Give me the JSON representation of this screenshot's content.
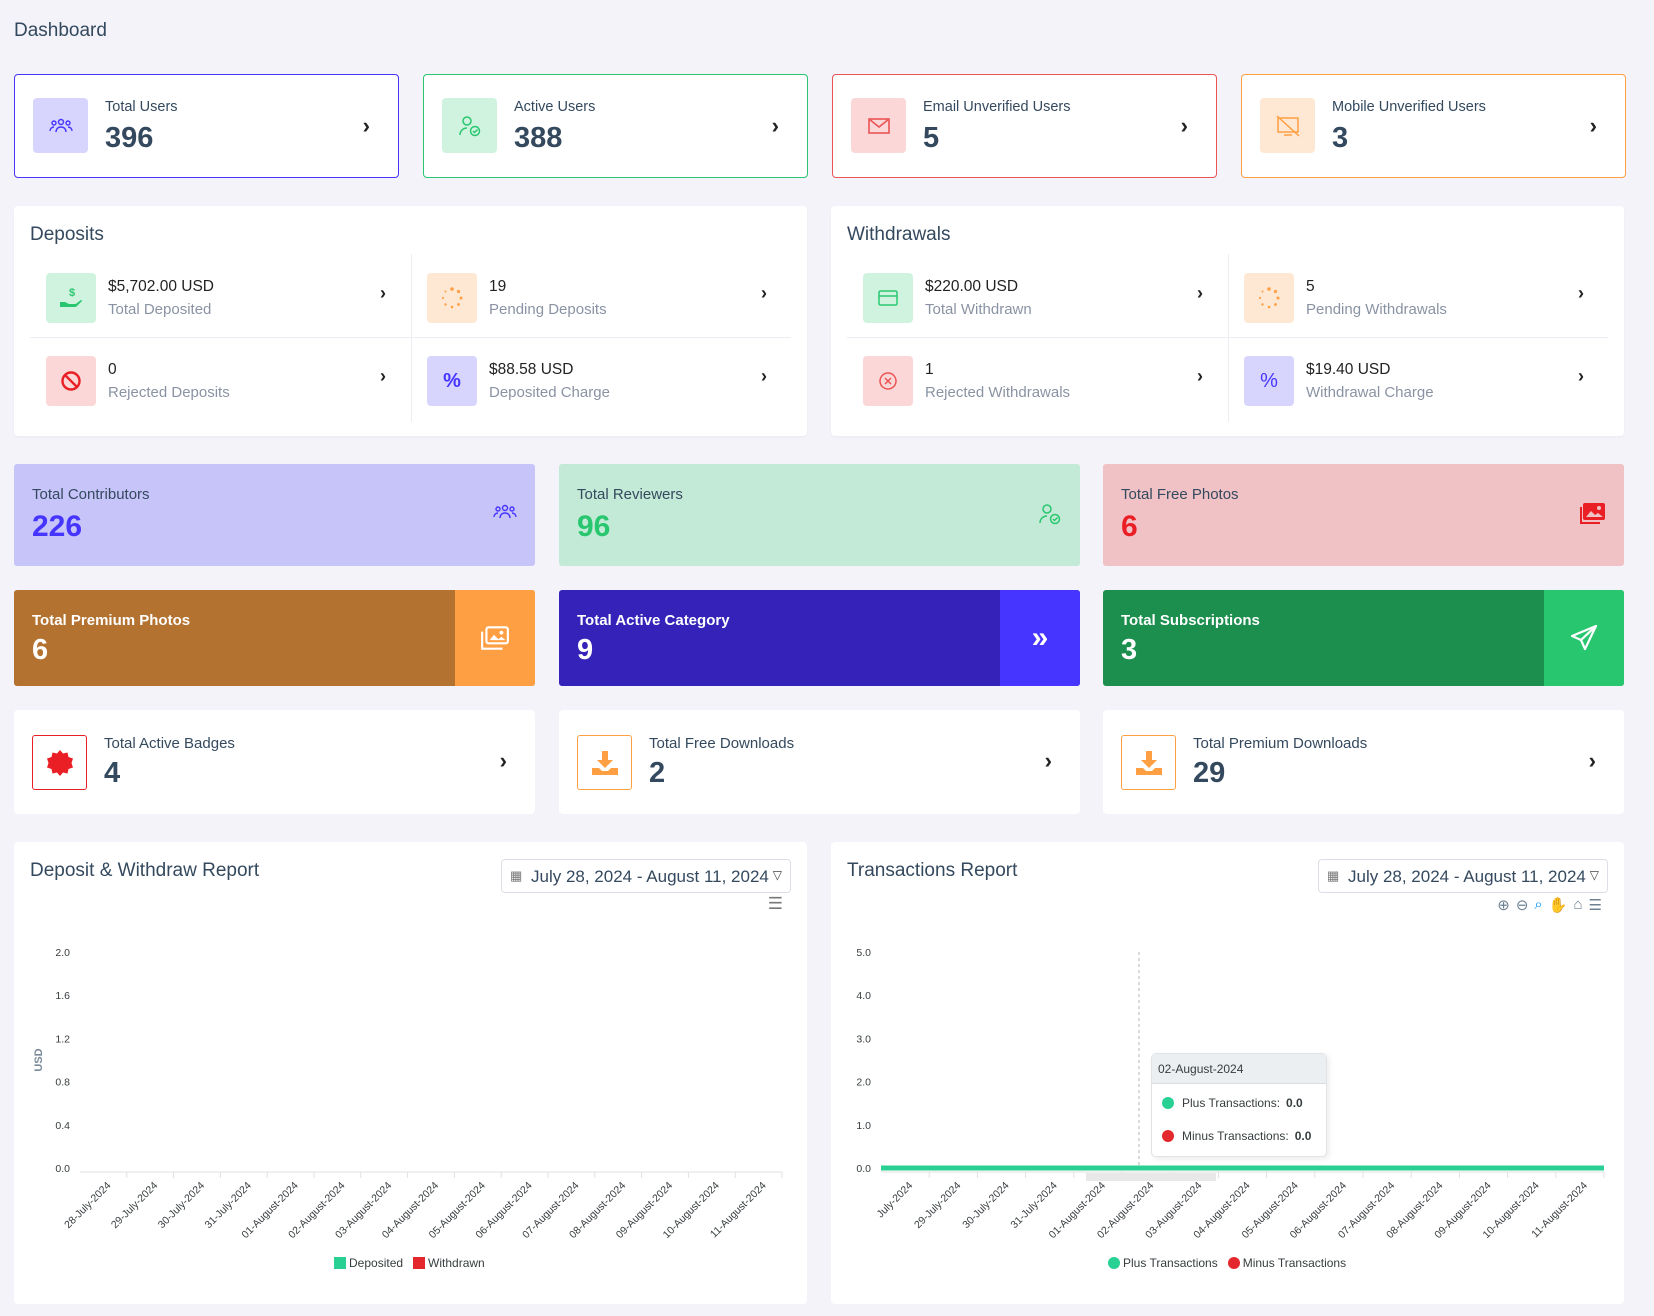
{
  "page_title": "Dashboard",
  "widgets": [
    {
      "label": "Total Users",
      "value": "396",
      "icon": "users-icon",
      "color": "#4634ff",
      "bg": "#d7d4fd"
    },
    {
      "label": "Active Users",
      "value": "388",
      "icon": "user-check-icon",
      "color": "#28c76f",
      "bg": "#d0f3e0"
    },
    {
      "label": "Email Unverified Users",
      "value": "5",
      "icon": "envelope-icon",
      "color": "#ea5455",
      "bg": "#fbd7d7"
    },
    {
      "label": "Mobile Unverified Users",
      "value": "3",
      "icon": "mobile-off-icon",
      "color": "#ff9f43",
      "bg": "#ffe8d3"
    }
  ],
  "deposits": {
    "title": "Deposits",
    "items": [
      {
        "value": "$5,702.00 USD",
        "label": "Total Deposited",
        "icon": "hand-dollar-icon"
      },
      {
        "value": "19",
        "label": "Pending Deposits",
        "icon": "spinner-icon"
      },
      {
        "value": "0",
        "label": "Rejected Deposits",
        "icon": "ban-icon"
      },
      {
        "value": "$88.58 USD",
        "label": "Deposited Charge",
        "icon": "percent-icon"
      }
    ]
  },
  "withdrawals": {
    "title": "Withdrawals",
    "items": [
      {
        "value": "$220.00 USD",
        "label": "Total Withdrawn",
        "icon": "card-icon"
      },
      {
        "value": "5",
        "label": "Pending Withdrawals",
        "icon": "spinner-icon"
      },
      {
        "value": "1",
        "label": "Rejected Withdrawals",
        "icon": "times-circle-icon"
      },
      {
        "value": "$19.40 USD",
        "label": "Withdrawal Charge",
        "icon": "percent-icon"
      }
    ]
  },
  "stats": [
    {
      "label": "Total Contributors",
      "value": "226",
      "icon": "users-icon"
    },
    {
      "label": "Total Reviewers",
      "value": "96",
      "icon": "user-check-icon"
    },
    {
      "label": "Total Free Photos",
      "value": "6",
      "icon": "images-icon"
    }
  ],
  "dark_stats": [
    {
      "label": "Total Premium Photos",
      "value": "6",
      "icon": "images-icon"
    },
    {
      "label": "Total Active Category",
      "value": "9",
      "icon": "double-chevron-icon"
    },
    {
      "label": "Total Subscriptions",
      "value": "3",
      "icon": "paper-plane-icon"
    }
  ],
  "badge_stats": [
    {
      "label": "Total Active Badges",
      "value": "4",
      "icon": "badge-icon"
    },
    {
      "label": "Total Free Downloads",
      "value": "2",
      "icon": "download-icon"
    },
    {
      "label": "Total Premium Downloads",
      "value": "29",
      "icon": "download-icon"
    }
  ],
  "deposit_report": {
    "title": "Deposit & Withdraw Report",
    "date_range": "July 28, 2024 - August 11, 2024"
  },
  "transactions_report": {
    "title": "Transactions Report",
    "date_range": "July 28, 2024 - August 11, 2024",
    "tooltip": {
      "date": "02-August-2024",
      "plus_label": "Plus Transactions:",
      "plus_value": "0.0",
      "minus_label": "Minus Transactions:",
      "minus_value": "0.0"
    }
  },
  "chart_data": [
    {
      "type": "bar",
      "title": "Deposit & Withdraw Report",
      "ylabel": "USD",
      "xlabel": "",
      "ylim": [
        0,
        2.0
      ],
      "y_ticks": [
        "0.0",
        "0.4",
        "0.8",
        "1.2",
        "1.6",
        "2.0"
      ],
      "categories": [
        "28-July-2024",
        "29-July-2024",
        "30-July-2024",
        "31-July-2024",
        "01-August-2024",
        "02-August-2024",
        "03-August-2024",
        "04-August-2024",
        "05-August-2024",
        "06-August-2024",
        "07-August-2024",
        "08-August-2024",
        "09-August-2024",
        "10-August-2024",
        "11-August-2024"
      ],
      "series": [
        {
          "name": "Deposited",
          "color": "#28d094",
          "values": [
            0,
            0,
            0,
            0,
            0,
            0,
            0,
            0,
            0,
            0,
            0,
            0,
            0,
            0,
            0
          ]
        },
        {
          "name": "Withdrawn",
          "color": "#ff4961",
          "values": [
            0,
            0,
            0,
            0,
            0,
            0,
            0,
            0,
            0,
            0,
            0,
            0,
            0,
            0,
            0
          ]
        }
      ],
      "legend": "bottom",
      "grid": false
    },
    {
      "type": "area",
      "title": "Transactions Report",
      "ylim": [
        0,
        5.0
      ],
      "y_ticks": [
        "0.0",
        "1.0",
        "2.0",
        "3.0",
        "4.0",
        "5.0"
      ],
      "categories": [
        "July-2024",
        "29-July-2024",
        "30-July-2024",
        "31-July-2024",
        "01-August-2024",
        "02-August-2024",
        "03-August-2024",
        "04-August-2024",
        "05-August-2024",
        "06-August-2024",
        "07-August-2024",
        "08-August-2024",
        "09-August-2024",
        "10-August-2024",
        "11-August-2024"
      ],
      "series": [
        {
          "name": "Plus Transactions",
          "color": "#28d094",
          "values": [
            0,
            0,
            0,
            0,
            0,
            0,
            0,
            0,
            0,
            0,
            0,
            0,
            0,
            0,
            0
          ]
        },
        {
          "name": "Minus Transactions",
          "color": "#e3272d",
          "values": [
            0,
            0,
            0,
            0,
            0,
            0,
            0,
            0,
            0,
            0,
            0,
            0,
            0,
            0,
            0
          ]
        }
      ],
      "legend": "bottom",
      "grid": false
    }
  ]
}
